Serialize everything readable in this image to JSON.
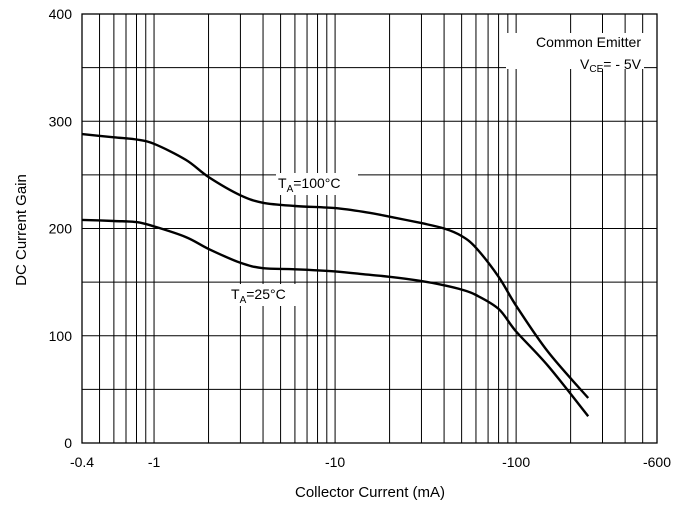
{
  "chart_data": {
    "type": "line",
    "x_scale": "log",
    "xlim": [
      -0.4,
      -600
    ],
    "ylim": [
      0,
      400
    ],
    "grid": true,
    "xlabel": "Collector Current (mA)",
    "ylabel": "DC Current Gain",
    "x_tick_labels": [
      "-0.4",
      "-1",
      "-10",
      "-100",
      "-600"
    ],
    "x_ticks": [
      -0.4,
      -1,
      -10,
      -100,
      -600
    ],
    "y_tick_labels": [
      "0",
      "100",
      "200",
      "300",
      "400"
    ],
    "y_ticks": [
      0,
      100,
      200,
      300,
      400
    ],
    "annotation": {
      "line1": "Common Emitter",
      "line2_main": "V",
      "line2_sub": "CE",
      "line2_rest": "= - 5V"
    },
    "series": [
      {
        "name_main": "T",
        "name_sub": "A",
        "name_rest": "=100°C",
        "x": [
          -0.4,
          -0.6,
          -0.8,
          -1,
          -1.5,
          -2,
          -3,
          -4,
          -6,
          -10,
          -15,
          -20,
          -30,
          -40,
          -50,
          -60,
          -80,
          -100,
          -150,
          -250
        ],
        "y": [
          288,
          285,
          283,
          279,
          264,
          248,
          231,
          224,
          221,
          219,
          215,
          211,
          205,
          200,
          193,
          182,
          155,
          128,
          85,
          42
        ]
      },
      {
        "name_main": "T",
        "name_sub": "A",
        "name_rest": "=25°C",
        "x": [
          -0.4,
          -0.6,
          -0.8,
          -1,
          -1.5,
          -2,
          -3,
          -4,
          -6,
          -10,
          -15,
          -20,
          -30,
          -40,
          -50,
          -60,
          -80,
          -100,
          -150,
          -250
        ],
        "y": [
          208,
          207,
          206,
          202,
          192,
          181,
          168,
          163,
          162,
          160,
          157,
          155,
          151,
          147,
          143,
          138,
          125,
          104,
          72,
          25
        ]
      }
    ]
  }
}
